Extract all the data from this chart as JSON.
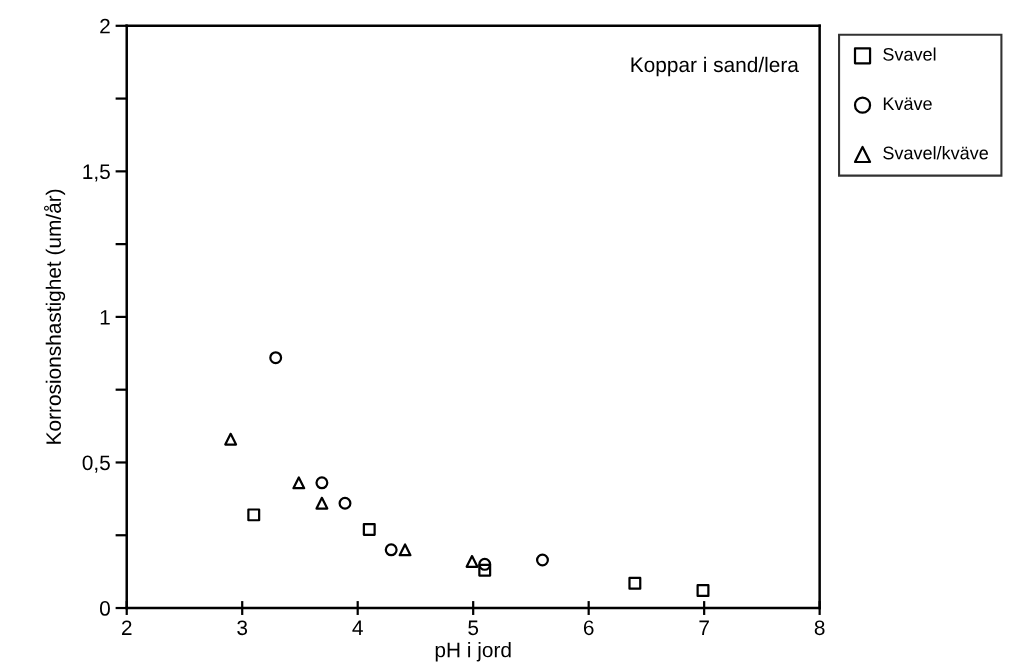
{
  "chart_data": {
    "type": "scatter",
    "xlabel": "pH i jord",
    "ylabel": "Korrosionshastighet (um/år)",
    "annotations": [
      "Koppar i sand/lera"
    ],
    "series": [
      {
        "name": "Svavel",
        "color": "#000000",
        "marker": "square",
        "x": [
          3.1,
          4.1,
          5.1,
          6.4,
          6.99
        ],
        "values": [
          0.32,
          0.27,
          0.13,
          0.085,
          0.06
        ]
      },
      {
        "name": "Kväve",
        "color": "#000000",
        "marker": "circle",
        "x": [
          3.29,
          3.69,
          3.89,
          4.29,
          5.1,
          5.6
        ],
        "values": [
          0.86,
          0.43,
          0.36,
          0.2,
          0.15,
          0.165
        ]
      },
      {
        "name": "Svavel/kväve",
        "color": "#000000",
        "marker": "triangle",
        "x": [
          2.9,
          3.49,
          3.69,
          4.41,
          4.99
        ],
        "values": [
          0.58,
          0.43,
          0.36,
          0.2,
          0.16
        ]
      }
    ],
    "xlim": [
      2,
      8
    ],
    "xticks": [
      2,
      3,
      4,
      5,
      6,
      7,
      8
    ],
    "ylim": [
      0,
      2
    ],
    "yticks": [
      {
        "value": 0,
        "label": "0"
      },
      {
        "value": 0.25,
        "label": null
      },
      {
        "value": 0.5,
        "label": "0,5"
      },
      {
        "value": 0.75,
        "label": null
      },
      {
        "value": 1,
        "label": "1"
      },
      {
        "value": 1.25,
        "label": null
      },
      {
        "value": 1.5,
        "label": "1,5"
      },
      {
        "value": 1.75,
        "label": null
      },
      {
        "value": 2,
        "label": "2"
      }
    ],
    "grid": false,
    "legend": "right"
  }
}
